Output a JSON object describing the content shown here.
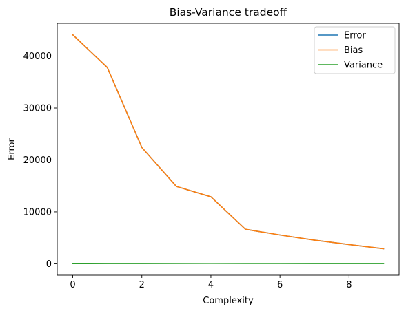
{
  "chart_data": {
    "type": "line",
    "title": "Bias-Variance tradeoff",
    "xlabel": "Complexity",
    "ylabel": "Error",
    "xlim": [
      -0.45,
      9.45
    ],
    "ylim": [
      -2200,
      46300
    ],
    "xticks": [
      0,
      2,
      4,
      6,
      8
    ],
    "yticks": [
      0,
      10000,
      20000,
      30000,
      40000
    ],
    "grid": false,
    "legend_position": "top-right",
    "x": [
      0,
      1,
      2,
      3,
      4,
      5,
      6,
      7,
      8,
      9
    ],
    "series": [
      {
        "name": "Error",
        "color": "#1f77b4",
        "values": [
          44100,
          37800,
          22400,
          14900,
          12900,
          6650,
          5550,
          4550,
          3700,
          2900
        ]
      },
      {
        "name": "Bias",
        "color": "#ff7f0e",
        "values": [
          44100,
          37800,
          22400,
          14900,
          12900,
          6650,
          5550,
          4550,
          3700,
          2900
        ]
      },
      {
        "name": "Variance",
        "color": "#2ca02c",
        "values": [
          30,
          40,
          50,
          60,
          70,
          60,
          55,
          50,
          45,
          40
        ]
      }
    ]
  }
}
